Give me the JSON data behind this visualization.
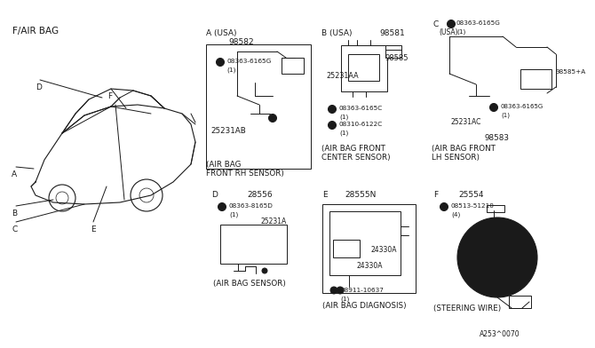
{
  "title": "F/AIR BAG",
  "bg_color": "#ffffff",
  "line_color": "#1a1a1a",
  "text_color": "#1a1a1a",
  "fig_width": 6.4,
  "fig_height": 3.72,
  "footer": "A253^0070",
  "sections": {
    "A": {
      "header_label": "A (USA)",
      "part_no": "98582",
      "screw": "08363-6165G",
      "screw_qty": "(1)",
      "wire_label": "25231AB",
      "caption1": "(AIR BAG",
      "caption2": "FRONT RH SENSOR)"
    },
    "B": {
      "header_label": "B (USA)",
      "part_no": "98581",
      "wire_label": "25231AA",
      "part2": "98585",
      "screw1": "08363-6165C",
      "screw1_qty": "(1)",
      "screw2": "08310-6122C",
      "screw2_qty": "(1)",
      "caption1": "(AIR BAG FRONT",
      "caption2": "CENTER SENSOR)"
    },
    "C": {
      "header_label": "C",
      "sub_label": "(USA)",
      "screw_top": "08363-6165G",
      "screw_top_qty": "(1)",
      "part2": "98585+A",
      "screw2": "08363-6165G",
      "screw2_qty": "(1)",
      "wire_label": "25231AC",
      "part_no": "98583",
      "caption1": "(AIR BAG FRONT",
      "caption2": "LH SENSOR)"
    },
    "D": {
      "header_label": "D",
      "part_no": "28556",
      "screw": "08363-8165D",
      "screw_qty": "(1)",
      "wire_label": "25231A",
      "caption": "(AIR BAG SENSOR)"
    },
    "E": {
      "header_label": "E",
      "part_no": "28555N",
      "part2": "24330A",
      "part3": "24330A",
      "nut": "08911-10637",
      "nut_qty": "(1)",
      "caption": "(AIR BAG DIAGNOSIS)"
    },
    "F": {
      "header_label": "F",
      "part_no": "25554",
      "screw": "08513-51210",
      "screw_qty": "(4)",
      "caption": "(STEERING WIRE)"
    }
  }
}
